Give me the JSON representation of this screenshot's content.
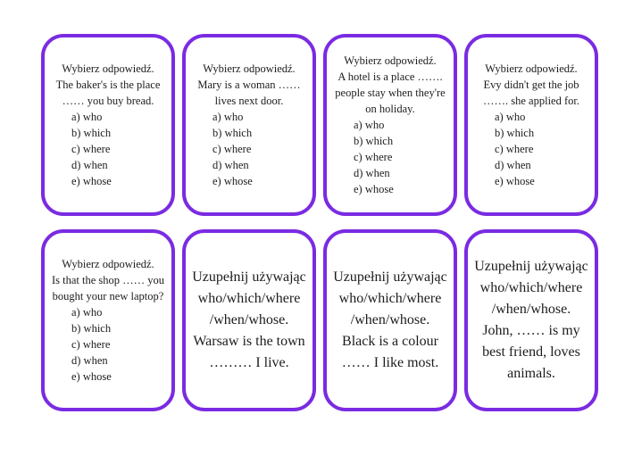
{
  "page": {
    "background_color": "#ffffff",
    "card_border_color": "#7a2be2",
    "text_color": "#1c1c1c"
  },
  "cards": [
    {
      "type": "choice",
      "lines": [
        "Wybierz odpowiedź.",
        "The baker's is the place",
        "…… you buy bread."
      ],
      "options": [
        "a) who",
        "b) which",
        "c) where",
        "d) when",
        "e) whose"
      ]
    },
    {
      "type": "choice",
      "lines": [
        "Wybierz odpowiedź.",
        "Mary is a woman ……",
        "lives next door."
      ],
      "options": [
        "a) who",
        "b) which",
        "c) where",
        "d) when",
        "e) whose"
      ]
    },
    {
      "type": "choice",
      "lines": [
        "Wybierz odpowiedź.",
        "A hotel is a place …….",
        "people stay when they're",
        "on holiday."
      ],
      "options": [
        "a) who",
        "b) which",
        "c) where",
        "d) when",
        "e) whose"
      ]
    },
    {
      "type": "choice",
      "lines": [
        "Wybierz odpowiedź.",
        "Evy didn't get the job",
        "……. she applied for."
      ],
      "options": [
        "a) who",
        "b) which",
        "c) where",
        "d) when",
        "e) whose"
      ]
    },
    {
      "type": "choice",
      "lines": [
        "Wybierz odpowiedź.",
        "Is that the shop …… you",
        "bought your new laptop?"
      ],
      "options": [
        "a) who",
        "b) which",
        "c) where",
        "d) when",
        "e) whose"
      ]
    },
    {
      "type": "fill",
      "lines": [
        "Uzupełnij używając",
        "who/which/where",
        "/when/whose.",
        "Warsaw is the town",
        "……… I live."
      ]
    },
    {
      "type": "fill",
      "lines": [
        "Uzupełnij używając",
        "who/which/where",
        "/when/whose.",
        "Black is a colour",
        "…… I like most."
      ]
    },
    {
      "type": "fill",
      "lines": [
        "Uzupełnij używając",
        "who/which/where",
        "/when/whose.",
        "John, …… is my",
        "best friend, loves",
        "animals."
      ]
    }
  ]
}
